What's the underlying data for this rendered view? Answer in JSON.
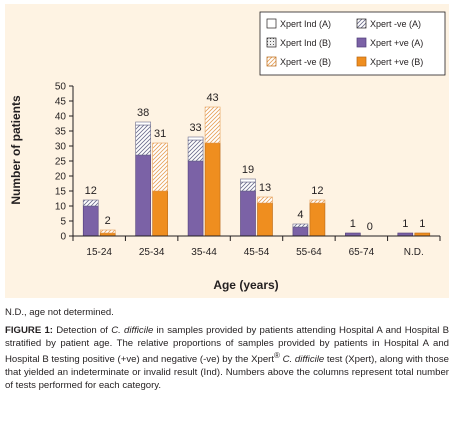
{
  "figure": {
    "footnote": "N.D., age not determined.",
    "caption": {
      "label": "FIGURE 1:",
      "text_1": " Detection of ",
      "organism_1": "C. difficile",
      "text_2": " in samples provided by patients attending Hospital A and Hospital B stratified by patient age. The relative proportions of samples provided by patients in Hospital A and Hospital B testing positive (+ve) and negative (-ve) by the Xpert",
      "reg": "®",
      "organism_2": "C. difficile",
      "text_3": " test (Xpert), along with those that yielded an indeterminate or invalid result (Ind). Numbers above the columns represent total number of tests performed for each category."
    }
  },
  "chart_data": {
    "type": "bar",
    "stacked": true,
    "xlabel": "Age (years)",
    "ylabel": "Number of patients",
    "ylim": [
      0,
      50
    ],
    "yticks": [
      0,
      5,
      10,
      15,
      20,
      25,
      30,
      35,
      40,
      45,
      50
    ],
    "grid": false,
    "legend_position": "top-right",
    "categories": [
      "15-24",
      "25-34",
      "35-44",
      "45-54",
      "55-64",
      "65-74",
      "N.D."
    ],
    "colors": {
      "positive_a": "#7b62a6",
      "positive_b": "#ef8e1f",
      "hatch_a": "#6c6c8c",
      "hatch_b": "#e6a15a",
      "ind_b_fill": "#eeeeee"
    },
    "legend": [
      {
        "label": "Xpert Ind (A)",
        "key": "ind_a"
      },
      {
        "label": "Xpert -ve (A)",
        "key": "neg_a"
      },
      {
        "label": "Xpert Ind (B)",
        "key": "ind_b"
      },
      {
        "label": "Xpert +ve (A)",
        "key": "pos_a"
      },
      {
        "label": "Xpert -ve (B)",
        "key": "neg_b"
      },
      {
        "label": "Xpert +ve (B)",
        "key": "pos_b"
      }
    ],
    "hospital_a": {
      "positive": [
        10,
        27,
        25,
        15,
        3,
        1,
        1
      ],
      "negative": [
        2,
        10,
        7,
        3,
        1,
        0,
        0
      ],
      "indeterminate": [
        0,
        1,
        1,
        1,
        0,
        0,
        0
      ],
      "totals": [
        12,
        38,
        33,
        19,
        4,
        1,
        1
      ]
    },
    "hospital_b": {
      "positive": [
        1,
        15,
        31,
        11,
        11,
        0,
        1
      ],
      "negative": [
        1,
        16,
        12,
        2,
        1,
        0,
        0
      ],
      "indeterminate": [
        0,
        0,
        0,
        0,
        0,
        0,
        0
      ],
      "totals": [
        2,
        31,
        43,
        13,
        12,
        0,
        1
      ]
    }
  }
}
